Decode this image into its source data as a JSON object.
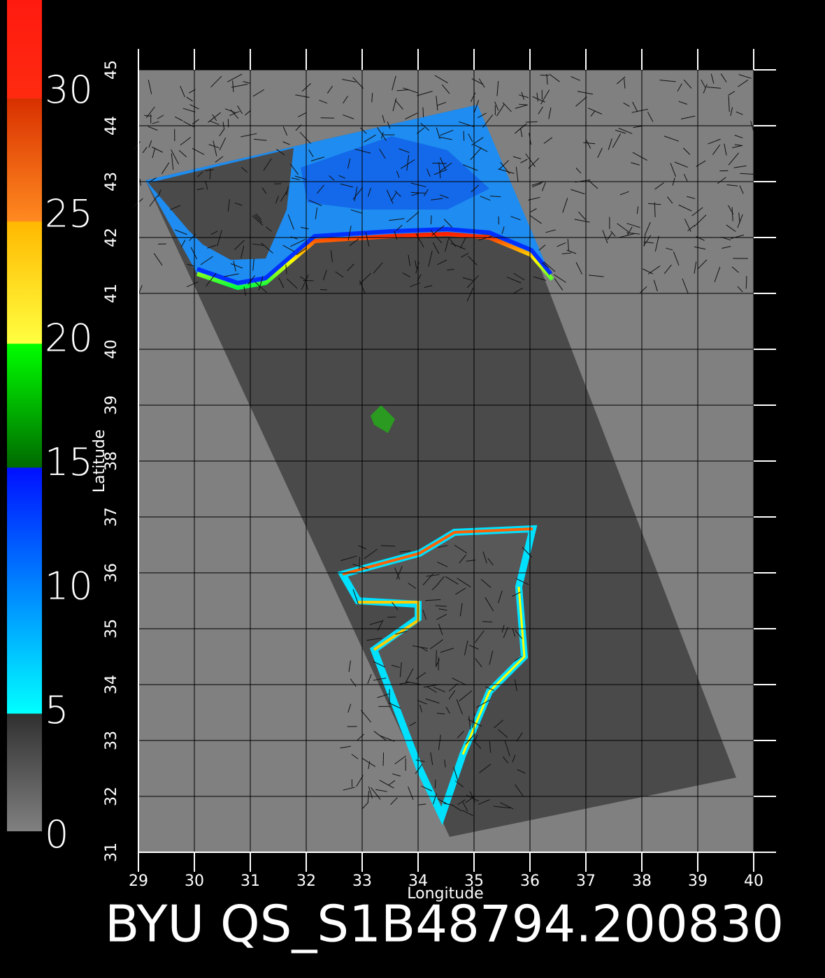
{
  "title": "BYU QS_S1B48794.200830",
  "colorbar": {
    "range": [
      0,
      33.5
    ],
    "ticks": [
      0,
      5,
      10,
      15,
      20,
      25,
      30
    ]
  },
  "map": {
    "xlabel": "Longitude",
    "ylabel": "Latitude",
    "lonlim": [
      29,
      40
    ],
    "latlim": [
      31,
      45
    ],
    "lon_ticks": [
      29,
      30,
      31,
      32,
      33,
      34,
      35,
      36,
      37,
      38,
      39,
      40
    ],
    "lat_ticks": [
      31,
      32,
      33,
      34,
      35,
      36,
      37,
      38,
      39,
      40,
      41,
      42,
      43,
      44,
      45
    ]
  }
}
